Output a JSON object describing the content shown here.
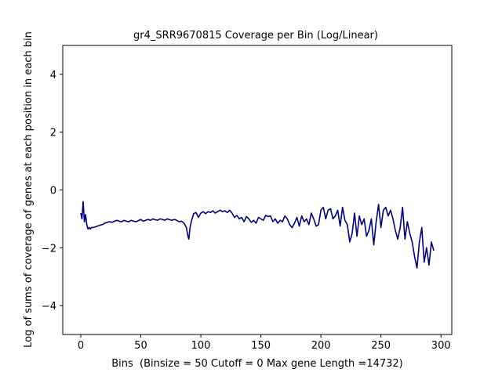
{
  "chart_data": {
    "type": "line",
    "title": "gr4_SRR9670815 Coverage per Bin (Log/Linear)",
    "xlabel": "Bins  (Binsize = 50 Cutoff = 0 Max gene Length =14732)",
    "ylabel": "Log of sums of coverage of genes at each position in each bin",
    "xlim": [
      -15,
      309
    ],
    "ylim": [
      -5,
      5
    ],
    "xticks": [
      0,
      50,
      100,
      150,
      200,
      250,
      300
    ],
    "yticks": [
      -4,
      -2,
      0,
      2,
      4
    ],
    "xtick_labels": [
      "0",
      "50",
      "100",
      "150",
      "200",
      "250",
      "300"
    ],
    "ytick_labels": [
      "−4",
      "−2",
      "0",
      "2",
      "4"
    ],
    "grid": false,
    "legend": "none",
    "line_color": "#000080",
    "series": [
      {
        "x": [
          0,
          1,
          2,
          3,
          4,
          5,
          6,
          7,
          8,
          9,
          10,
          12,
          14,
          16,
          18,
          20,
          22,
          24,
          26,
          28,
          30,
          32,
          34,
          36,
          38,
          40,
          42,
          44,
          46,
          48,
          50,
          52,
          54,
          56,
          58,
          60,
          62,
          64,
          66,
          68,
          70,
          72,
          74,
          76,
          78,
          80,
          82,
          84,
          86,
          88,
          89,
          90,
          91,
          92,
          94,
          96,
          98,
          100,
          102,
          104,
          106,
          108,
          110,
          112,
          114,
          116,
          118,
          120,
          122,
          124,
          126,
          128,
          130,
          132,
          134,
          136,
          138,
          140,
          142,
          144,
          146,
          148,
          150,
          152,
          154,
          156,
          158,
          160,
          162,
          164,
          166,
          168,
          170,
          172,
          174,
          176,
          178,
          180,
          182,
          184,
          186,
          188,
          190,
          192,
          194,
          196,
          198,
          200,
          202,
          204,
          206,
          208,
          210,
          212,
          214,
          216,
          218,
          220,
          222,
          224,
          226,
          228,
          230,
          232,
          234,
          236,
          238,
          240,
          242,
          244,
          246,
          248,
          250,
          252,
          254,
          256,
          258,
          260,
          262,
          264,
          266,
          268,
          270,
          272,
          274,
          276,
          278,
          280,
          282,
          284,
          286,
          288,
          290,
          292,
          294
        ],
        "y": [
          -0.8,
          -1.0,
          -0.4,
          -1.1,
          -0.85,
          -1.2,
          -1.35,
          -1.3,
          -1.35,
          -1.3,
          -1.3,
          -1.28,
          -1.25,
          -1.22,
          -1.2,
          -1.15,
          -1.12,
          -1.1,
          -1.12,
          -1.08,
          -1.05,
          -1.08,
          -1.1,
          -1.05,
          -1.08,
          -1.1,
          -1.05,
          -1.08,
          -1.1,
          -1.06,
          -1.02,
          -1.08,
          -1.05,
          -1.02,
          -1.05,
          -1.0,
          -1.03,
          -1.05,
          -1.0,
          -1.02,
          -1.05,
          -1.0,
          -1.03,
          -1.05,
          -1.02,
          -1.05,
          -1.1,
          -1.08,
          -1.15,
          -1.3,
          -1.55,
          -1.7,
          -1.3,
          -1.1,
          -0.82,
          -0.78,
          -0.95,
          -0.8,
          -0.75,
          -0.82,
          -0.75,
          -0.78,
          -0.72,
          -0.8,
          -0.75,
          -0.7,
          -0.75,
          -0.72,
          -0.78,
          -0.7,
          -0.8,
          -0.95,
          -0.88,
          -1.0,
          -0.95,
          -1.1,
          -0.92,
          -1.0,
          -1.12,
          -1.05,
          -1.15,
          -0.95,
          -1.0,
          -1.05,
          -0.88,
          -0.92,
          -0.9,
          -1.1,
          -1.0,
          -1.15,
          -1.05,
          -1.1,
          -0.9,
          -1.0,
          -1.2,
          -1.3,
          -1.15,
          -0.95,
          -1.25,
          -0.9,
          -1.1,
          -1.0,
          -1.2,
          -0.8,
          -1.0,
          -1.25,
          -1.2,
          -0.7,
          -0.6,
          -1.0,
          -0.7,
          -0.65,
          -1.0,
          -0.9,
          -0.7,
          -1.25,
          -0.6,
          -1.05,
          -1.2,
          -1.8,
          -1.5,
          -0.8,
          -1.6,
          -0.9,
          -1.2,
          -1.0,
          -1.6,
          -1.4,
          -1.0,
          -1.9,
          -1.1,
          -0.5,
          -1.3,
          -0.7,
          -0.6,
          -0.9,
          -0.7,
          -1.0,
          -1.4,
          -1.7,
          -1.3,
          -0.6,
          -1.7,
          -1.1,
          -1.5,
          -1.8,
          -2.3,
          -2.7,
          -1.8,
          -1.3,
          -2.5,
          -2.0,
          -2.6,
          -1.8,
          -2.1
        ]
      }
    ]
  }
}
